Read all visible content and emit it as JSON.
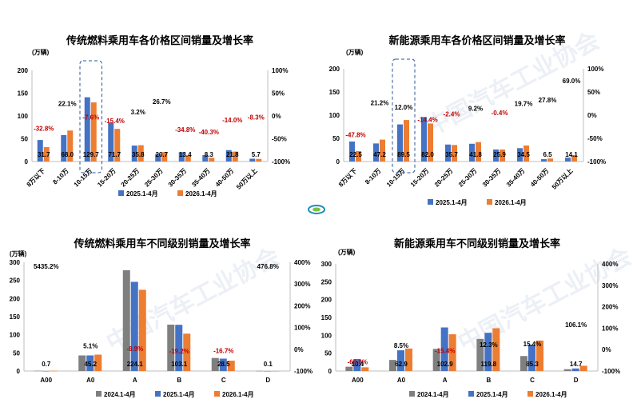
{
  "watermark": "中国汽车工业协会",
  "colors": {
    "gray": "#7f7f7f",
    "blue": "#4472c4",
    "orange": "#ed7d31",
    "neg": "#c00000",
    "text": "#000000",
    "axis": "#bfbfbf"
  },
  "chart_data": [
    {
      "type": "bar",
      "title": "传统燃料乘用车各价格区间销量及增长率",
      "unit": "(万辆)",
      "categories": [
        "8万以下",
        "8-10万",
        "10-15万",
        "15-20万",
        "20-25万",
        "25-30万",
        "30-35万",
        "35-40万",
        "40-50万",
        "50万以上"
      ],
      "series": [
        {
          "name": "2025.1-4月",
          "values": [
            47.2,
            58.0,
            141.0,
            84.8,
            35.0,
            16.3,
            20.5,
            13.9,
            25.0,
            6.2
          ]
        },
        {
          "name": "2026.1-4月",
          "values": [
            31.7,
            68.0,
            129.7,
            71.7,
            35.8,
            20.7,
            13.4,
            8.3,
            21.8,
            5.7
          ]
        }
      ],
      "value_labels": [
        "31.7",
        "68.0",
        "129.7",
        "71.7",
        "35.8",
        "20.7",
        "13.4",
        "8.3",
        "21.8",
        "5.7"
      ],
      "growth": [
        -32.8,
        22.1,
        -7.6,
        -15.4,
        3.2,
        26.7,
        -34.8,
        -40.3,
        -14.0,
        -8.3
      ],
      "growth_labels": [
        "-32.8%",
        "22.1%",
        "-7.6%",
        "-15.4%",
        "3.2%",
        "26.7%",
        "-34.8%",
        "-40.3%",
        "-14.0%",
        "-8.3%"
      ],
      "ylim": [
        0,
        200
      ],
      "yticks": [
        "0",
        "50",
        "100",
        "150",
        "200"
      ],
      "y2lim": [
        -100,
        100
      ],
      "y2ticks": [
        "-100%",
        "-50%",
        "0%",
        "50%",
        "100%"
      ],
      "highlight_category": "10-15万",
      "legend_placement": "bottom"
    },
    {
      "type": "bar",
      "title": "新能源乘用车各价格区间销量及增长率",
      "unit": "(万辆)",
      "categories": [
        "8万以下",
        "8-10万",
        "10-15万",
        "15-20万",
        "20-25万",
        "25-30万",
        "30-35万",
        "35-40万",
        "40-50万",
        "50万以上"
      ],
      "series": [
        {
          "name": "2025.1-4月",
          "values": [
            43.1,
            39.0,
            80.0,
            96.0,
            36.6,
            38.3,
            26.0,
            28.8,
            5.1,
            8.3
          ]
        },
        {
          "name": "2026.1-4月",
          "values": [
            22.5,
            47.2,
            89.5,
            82.0,
            35.7,
            41.8,
            25.9,
            34.5,
            6.5,
            14.1
          ]
        }
      ],
      "value_labels": [
        "22.5",
        "47.2",
        "89.5",
        "82.0",
        "35.7",
        "41.8",
        "25.9",
        "34.5",
        "6.5",
        "14.1"
      ],
      "growth": [
        -47.8,
        21.2,
        12.0,
        -14.4,
        -2.4,
        9.2,
        -0.4,
        19.7,
        27.8,
        69.0
      ],
      "growth_labels": [
        "-47.8%",
        "21.2%",
        "12.0%",
        "-14.4%",
        "-2.4%",
        "9.2%",
        "-0.4%",
        "19.7%",
        "27.8%",
        "69.0%"
      ],
      "ylim": [
        0,
        200
      ],
      "yticks": [
        "0",
        "50",
        "100",
        "150",
        "200"
      ],
      "y2lim": [
        -100,
        100
      ],
      "y2ticks": [
        "-100%",
        "-50%",
        "0%",
        "50%",
        "100%"
      ],
      "highlight_category": "10-15万",
      "legend_placement": "bottom"
    },
    {
      "type": "bar",
      "title": "传统燃料乘用车不同级别销量及增长率",
      "unit": "(万辆)",
      "categories": [
        "A00",
        "A0",
        "A",
        "B",
        "C",
        "D"
      ],
      "series": [
        {
          "name": "2024.1-4月",
          "values": [
            0.8,
            43.0,
            278.0,
            128.0,
            36.0,
            0.4
          ]
        },
        {
          "name": "2025.1-4月",
          "values": [
            0.1,
            43.0,
            246.0,
            127.5,
            34.2,
            0.02
          ]
        },
        {
          "name": "2026.1-4月",
          "values": [
            0.7,
            45.2,
            224.1,
            103.1,
            28.5,
            0.1
          ]
        }
      ],
      "value_labels": [
        "0.7",
        "45.2",
        "224.1",
        "103.1",
        "28.5",
        "0.1"
      ],
      "growth": [
        5435.2,
        5.1,
        -8.9,
        -19.2,
        -16.7,
        476.8
      ],
      "growth_labels": [
        "5435.2%",
        "5.1%",
        "-8.9%",
        "-19.2%",
        "-16.7%",
        "476.8%"
      ],
      "ylim": [
        0,
        300
      ],
      "yticks": [
        "0",
        "50",
        "100",
        "150",
        "200",
        "250",
        "300"
      ],
      "y2lim": [
        -100,
        400
      ],
      "y2ticks": [
        "-100%",
        "0%",
        "100%",
        "200%",
        "300%",
        "400%"
      ],
      "legend_placement": "bottom"
    },
    {
      "type": "bar",
      "title": "新能源乘用车不同级别销量及增长率",
      "unit": "(万辆)",
      "categories": [
        "A00",
        "A0",
        "A",
        "B",
        "C",
        "D"
      ],
      "series": [
        {
          "name": "2024.1-4月",
          "values": [
            12.0,
            31.0,
            62.0,
            90.0,
            42.0,
            5.0
          ]
        },
        {
          "name": "2025.1-4月",
          "values": [
            33.6,
            58.0,
            122.0,
            107.0,
            74.0,
            7.1
          ]
        },
        {
          "name": "2026.1-4月",
          "values": [
            10.4,
            62.9,
            102.9,
            119.8,
            85.3,
            14.7
          ]
        }
      ],
      "value_labels": [
        "10.4",
        "62.9",
        "102.9",
        "119.8",
        "85.3",
        "14.7"
      ],
      "growth": [
        -69.0,
        8.5,
        -15.4,
        12.3,
        15.4,
        106.1
      ],
      "growth_labels": [
        "-69.0%",
        "8.5%",
        "-15.4%",
        "12.3%",
        "15.4%",
        "106.1%"
      ],
      "ylim": [
        0,
        300
      ],
      "yticks": [
        "0",
        "50",
        "100",
        "150",
        "200",
        "250",
        "300"
      ],
      "y2lim": [
        -100,
        400
      ],
      "y2ticks": [
        "-100%",
        "0%",
        "100%",
        "200%",
        "300%",
        "400%"
      ],
      "legend_placement": "bottom"
    }
  ]
}
